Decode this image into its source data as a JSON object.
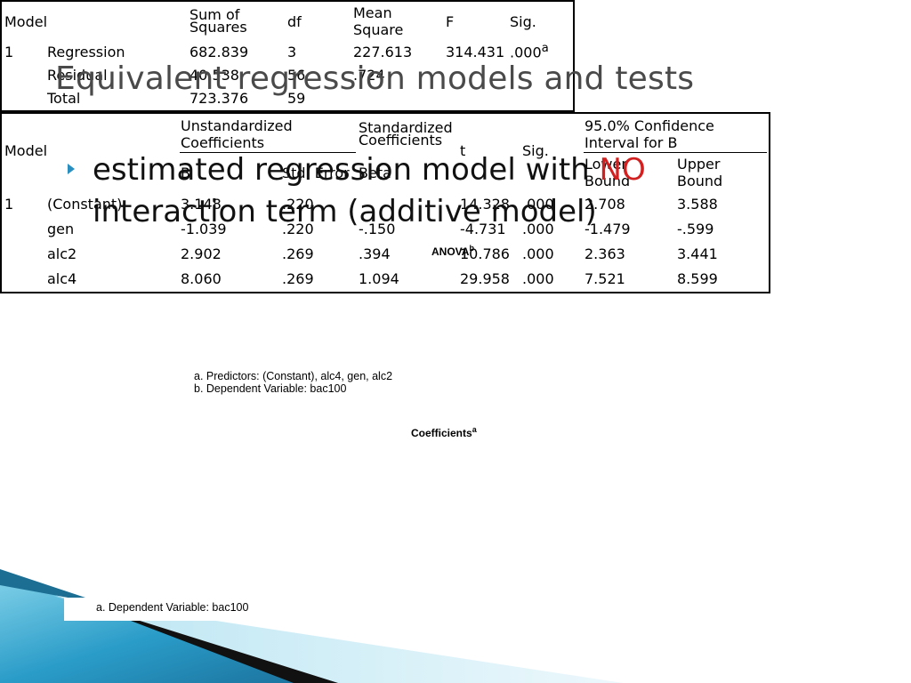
{
  "slide": {
    "title": "Equivalent regression models and tests",
    "bullet": {
      "text_before": "estimated regression model with ",
      "highlight": "NO",
      "text_after": " interaction term (additive model)"
    },
    "colors": {
      "highlight": "#d22020",
      "bullet": "#2a8fbf",
      "title": "#4a4a4a"
    }
  },
  "anova": {
    "caption": "ANOVA",
    "caption_sup": "b",
    "headers": {
      "model": "Model",
      "sum_of_squares": "Sum of Squares",
      "df": "df",
      "mean_square": "Mean Square",
      "f": "F",
      "sig": "Sig."
    },
    "model_no": "1",
    "rows": [
      {
        "label": "Regression",
        "ss": "682.839",
        "df": "3",
        "ms": "227.613",
        "f": "314.431",
        "sig": ".000",
        "sig_sup": "a"
      },
      {
        "label": "Residual",
        "ss": "40.538",
        "df": "56",
        "ms": ".724",
        "f": "",
        "sig": "",
        "sig_sup": ""
      },
      {
        "label": "Total",
        "ss": "723.376",
        "df": "59",
        "ms": "",
        "f": "",
        "sig": "",
        "sig_sup": ""
      }
    ],
    "footnotes": [
      "a. Predictors: (Constant), alc4, gen, alc2",
      "b. Dependent Variable: bac100"
    ]
  },
  "coefficients": {
    "caption": "Coefficients",
    "caption_sup": "a",
    "headers": {
      "model": "Model",
      "unstd": "Unstandardized Coefficients",
      "std": "Standardized Coefficients",
      "ci": "95.0% Confidence Interval for B",
      "b": "B",
      "std_error": "Std. Error",
      "beta": "Beta",
      "t": "t",
      "sig": "Sig.",
      "lower": "Lower Bound",
      "upper": "Upper Bound"
    },
    "model_no": "1",
    "rows": [
      {
        "label": "(Constant)",
        "b": "3.148",
        "se": ".220",
        "beta": "",
        "t": "14.328",
        "sig": ".000",
        "lower": "2.708",
        "upper": "3.588"
      },
      {
        "label": "gen",
        "b": "-1.039",
        "se": ".220",
        "beta": "-.150",
        "t": "-4.731",
        "sig": ".000",
        "lower": "-1.479",
        "upper": "-.599"
      },
      {
        "label": "alc2",
        "b": "2.902",
        "se": ".269",
        "beta": ".394",
        "t": "10.786",
        "sig": ".000",
        "lower": "2.363",
        "upper": "3.441"
      },
      {
        "label": "alc4",
        "b": "8.060",
        "se": ".269",
        "beta": "1.094",
        "t": "29.958",
        "sig": ".000",
        "lower": "7.521",
        "upper": "8.599"
      }
    ],
    "footnote": "a. Dependent Variable: bac100"
  }
}
